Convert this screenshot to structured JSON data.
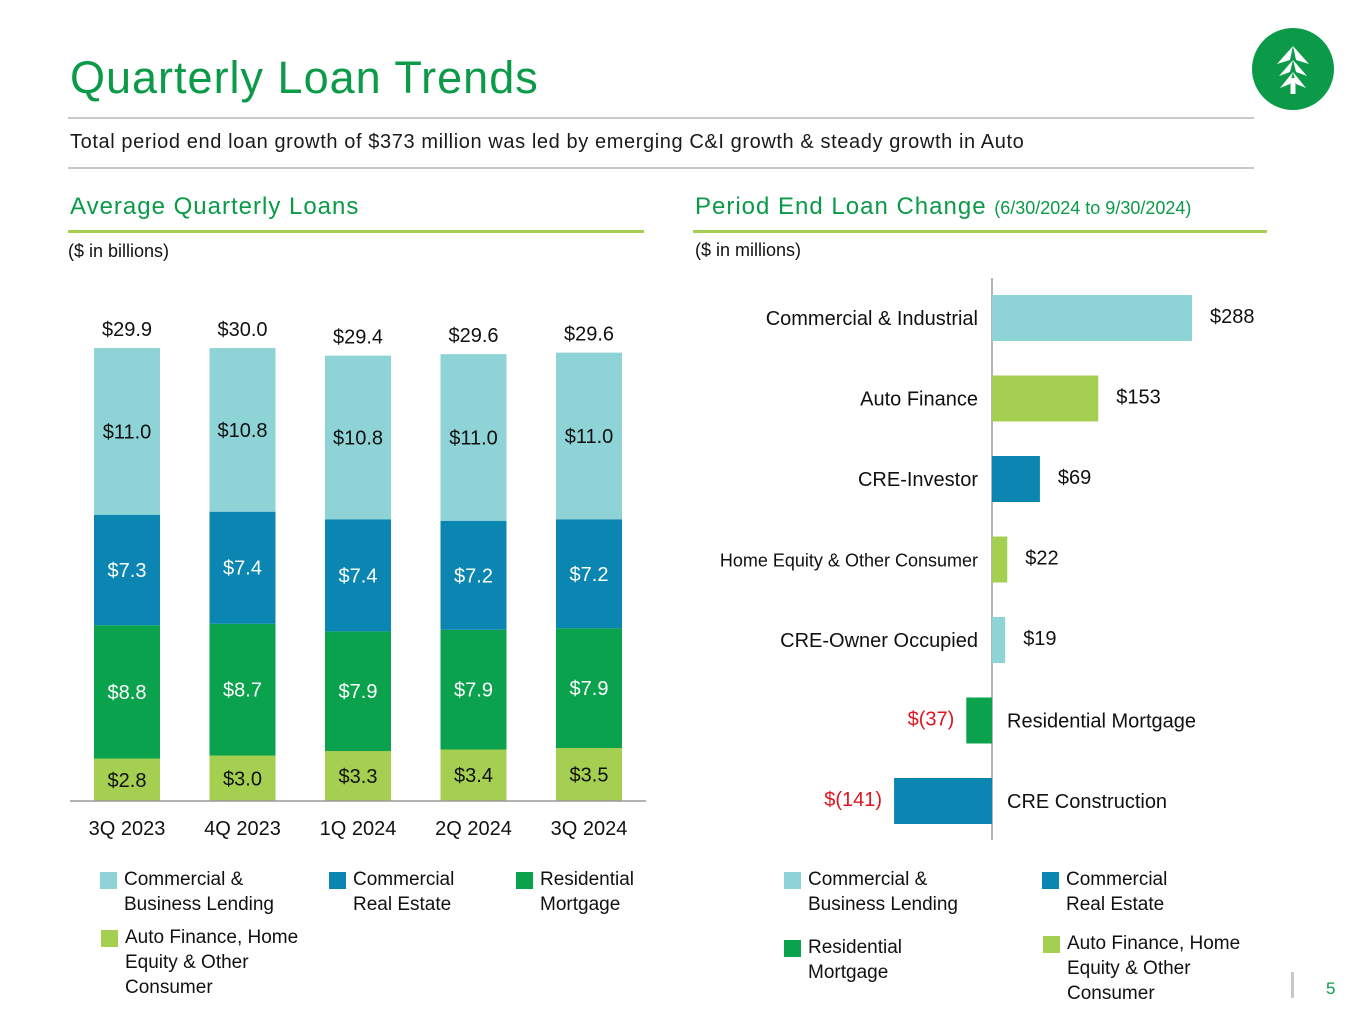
{
  "title": "Quarterly Loan Trends",
  "subtitle": "Total period end loan growth of $373 million was led by emerging C&I growth & steady growth in Auto",
  "colors": {
    "brand_green": "#0a9a48",
    "accent_lime": "#a4cf50",
    "commercial_business_lending": "#8ed3d6",
    "commercial_real_estate": "#0b85b2",
    "residential_mortgage": "#0aa24c",
    "auto_home_equity_consumer": "#a4cf50",
    "negative_label": "#e0141e"
  },
  "left_panel": {
    "title": "Average Quarterly Loans",
    "unit": "($ in billions)",
    "legend": [
      {
        "label": "Commercial & Business Lending",
        "color": "#8ed3d6"
      },
      {
        "label": "Commercial Real Estate",
        "color": "#0b85b2"
      },
      {
        "label": "Residential Mortgage",
        "color": "#0aa24c"
      },
      {
        "label": "Auto Finance, Home Equity & Other Consumer",
        "color": "#a4cf50"
      }
    ]
  },
  "right_panel": {
    "title": "Period End Loan Change",
    "date_range": "(6/30/2024 to 9/30/2024)",
    "unit": "($ in millions)",
    "legend": [
      {
        "label": "Commercial & Business Lending",
        "color": "#8ed3d6"
      },
      {
        "label": "Commercial Real Estate",
        "color": "#0b85b2"
      },
      {
        "label": "Residential Mortgage",
        "color": "#0aa24c"
      },
      {
        "label": "Auto Finance, Home Equity & Other Consumer",
        "color": "#a4cf50"
      }
    ]
  },
  "logo_icon": "tree-icon",
  "page_number": "5",
  "chart_data": [
    {
      "type": "bar",
      "stacked": true,
      "title": "Average Quarterly Loans",
      "ylabel": "($ in billions)",
      "categories": [
        "3Q 2023",
        "4Q 2023",
        "1Q 2024",
        "2Q 2024",
        "3Q 2024"
      ],
      "totals": [
        29.9,
        30.0,
        29.4,
        29.6,
        29.6
      ],
      "total_labels": [
        "$29.9",
        "$30.0",
        "$29.4",
        "$29.6",
        "$29.6"
      ],
      "series": [
        {
          "name": "Auto Finance, Home Equity & Other Consumer",
          "color": "#a4cf50",
          "values": [
            2.8,
            3.0,
            3.3,
            3.4,
            3.5
          ],
          "labels": [
            "$2.8",
            "$3.0",
            "$3.3",
            "$3.4",
            "$3.5"
          ],
          "label_color": "#111111"
        },
        {
          "name": "Residential Mortgage",
          "color": "#0aa24c",
          "values": [
            8.8,
            8.7,
            7.9,
            7.9,
            7.9
          ],
          "labels": [
            "$8.8",
            "$8.7",
            "$7.9",
            "$7.9",
            "$7.9"
          ],
          "label_color": "#ffffff"
        },
        {
          "name": "Commercial Real Estate",
          "color": "#0b85b2",
          "values": [
            7.3,
            7.4,
            7.4,
            7.2,
            7.2
          ],
          "labels": [
            "$7.3",
            "$7.4",
            "$7.4",
            "$7.2",
            "$7.2"
          ],
          "label_color": "#ffffff"
        },
        {
          "name": "Commercial & Business Lending",
          "color": "#8ed3d6",
          "values": [
            11.0,
            10.8,
            10.8,
            11.0,
            11.0
          ],
          "labels": [
            "$11.0",
            "$10.8",
            "$10.8",
            "$11.0",
            "$11.0"
          ],
          "label_color": "#111111"
        }
      ],
      "ylim": [
        0,
        30.5
      ],
      "grid": false,
      "legend": "bottom"
    },
    {
      "type": "bar",
      "orientation": "horizontal",
      "title": "Period End Loan Change (6/30/2024 to 9/30/2024)",
      "xlabel": "($ in millions)",
      "categories": [
        "Commercial & Industrial",
        "Auto Finance",
        "CRE-Investor",
        "Home Equity & Other Consumer",
        "CRE-Owner Occupied",
        "Residential Mortgage",
        "CRE Construction"
      ],
      "values": [
        288,
        153,
        69,
        22,
        19,
        -37,
        -141
      ],
      "value_labels": [
        "$288",
        "$153",
        "$69",
        "$22",
        "$19",
        "$(37)",
        "$(141)"
      ],
      "colors": [
        "#8ed3d6",
        "#a4cf50",
        "#0b85b2",
        "#a4cf50",
        "#8ed3d6",
        "#0aa24c",
        "#0b85b2"
      ],
      "xlim": [
        -141,
        288
      ],
      "grid": false,
      "legend": "bottom"
    }
  ]
}
